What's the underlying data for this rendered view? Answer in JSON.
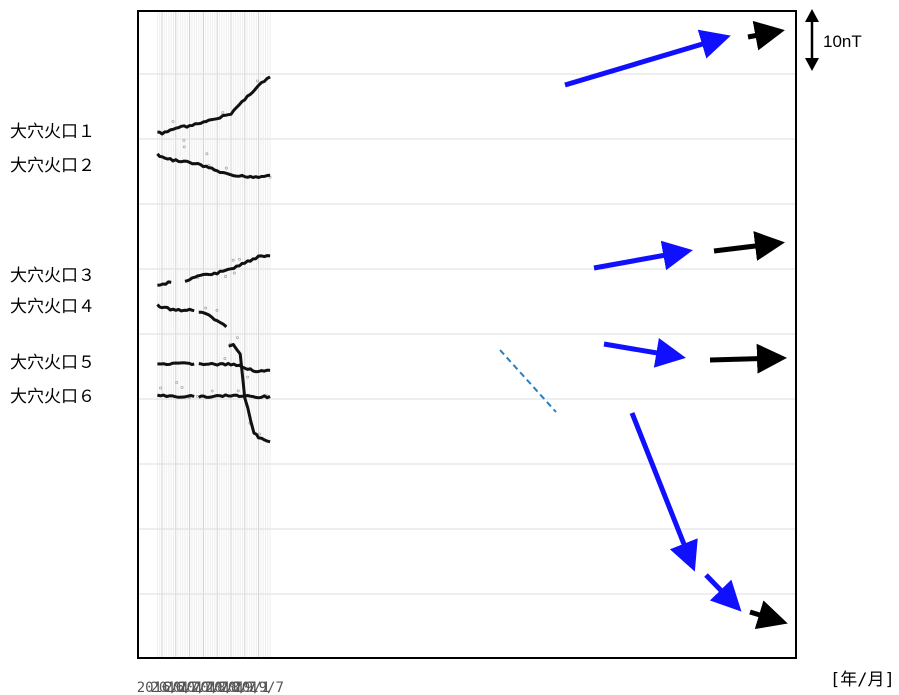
{
  "chart_data": {
    "type": "line",
    "x_ticks": [
      "2016/1",
      "2016/7",
      "2017/1",
      "2017/7",
      "2018/1",
      "2018/7",
      "2019/1",
      "2019/7"
    ],
    "x_unit_label": "[年/月]",
    "scale_bar_label": "10nT",
    "series": [
      {
        "name": "大穴火口１",
        "points": [
          [
            "2015/11",
            0
          ],
          [
            "2016/1",
            -0.4
          ],
          [
            "2016/7",
            0.8
          ],
          [
            "2017/1",
            1.2
          ],
          [
            "2017/7",
            1.8
          ],
          [
            "2018/1",
            2.6
          ],
          [
            "2018/7",
            3.6
          ],
          [
            "2019/1",
            6.3
          ],
          [
            "2019/7",
            9.0
          ],
          [
            "2019/12",
            10.6
          ]
        ]
      },
      {
        "name": "大穴火口２",
        "points": [
          [
            "2015/11",
            0
          ],
          [
            "2016/1",
            -0.5
          ],
          [
            "2016/7",
            -1.1
          ],
          [
            "2017/1",
            -1.4
          ],
          [
            "2017/7",
            -2.1
          ],
          [
            "2018/1",
            -3.1
          ],
          [
            "2018/7",
            -4.0
          ],
          [
            "2019/1",
            -4.1
          ],
          [
            "2019/7",
            -4.2
          ],
          [
            "2019/12",
            -3.9
          ]
        ]
      },
      {
        "name": "大穴火口３",
        "segments": [
          [
            [
              "2015/11",
              0
            ],
            [
              "2016/5",
              0.5
            ]
          ],
          [
            [
              "2016/11",
              0.7
            ],
            [
              "2017/1",
              1.1
            ],
            [
              "2017/7",
              1.9
            ],
            [
              "2018/1",
              2.3
            ],
            [
              "2018/7",
              3.1
            ],
            [
              "2019/1",
              4.3
            ],
            [
              "2019/7",
              5.4
            ],
            [
              "2019/12",
              5.6
            ]
          ]
        ]
      },
      {
        "name": "大穴火口４",
        "segments": [
          [
            [
              "2015/11",
              0
            ],
            [
              "2016/1",
              -0.4
            ],
            [
              "2016/7",
              -1.0
            ],
            [
              "2017/1",
              -1.0
            ],
            [
              "2017/3",
              -1.1
            ]
          ],
          [
            [
              "2017/5",
              -1.3
            ],
            [
              "2017/7",
              -1.5
            ],
            [
              "2018/1",
              -3.0
            ],
            [
              "2018/5",
              -4.2
            ]
          ],
          [
            [
              "2018/6",
              -7.9
            ],
            [
              "2018/8",
              -7.6
            ],
            [
              "2018/11",
              -9.6
            ],
            [
              "2019/1",
              -17.7
            ],
            [
              "2019/5",
              -24.6
            ],
            [
              "2019/7",
              -25.5
            ],
            [
              "2019/12",
              -26.3
            ]
          ]
        ]
      },
      {
        "name": "大穴火口５",
        "segments": [
          [
            [
              "2015/11",
              0
            ],
            [
              "2016/7",
              0.2
            ],
            [
              "2017/1",
              0.3
            ],
            [
              "2017/3",
              0.2
            ]
          ],
          [
            [
              "2017/5",
              0.2
            ],
            [
              "2017/7",
              0.2
            ],
            [
              "2018/1",
              0.1
            ],
            [
              "2018/7",
              0.1
            ],
            [
              "2019/1",
              -0.5
            ],
            [
              "2019/7",
              -1.3
            ],
            [
              "2019/12",
              -1.0
            ]
          ]
        ]
      },
      {
        "name": "大穴火口６",
        "segments": [
          [
            [
              "2015/11",
              0
            ],
            [
              "2016/7",
              -0.1
            ],
            [
              "2017/3",
              -0.1
            ]
          ],
          [
            [
              "2017/5",
              -0.2
            ],
            [
              "2017/7",
              -0.2
            ],
            [
              "2018/1",
              0.1
            ],
            [
              "2018/7",
              0.1
            ],
            [
              "2019/1",
              0.1
            ],
            [
              "2019/7",
              -0.2
            ],
            [
              "2019/12",
              -0.1
            ]
          ]
        ]
      }
    ],
    "annotations": {
      "trend_arrows_blue": 5,
      "trend_arrows_black": 5,
      "dashed_connector": "大穴火口４ 2018/2–2018/6"
    },
    "grid": true,
    "colors": {
      "series": "#111111",
      "trend_blue": "#1010ff",
      "trend_black": "#000000",
      "dashed": "#2a7fc0",
      "grid": "#dddddd"
    }
  }
}
